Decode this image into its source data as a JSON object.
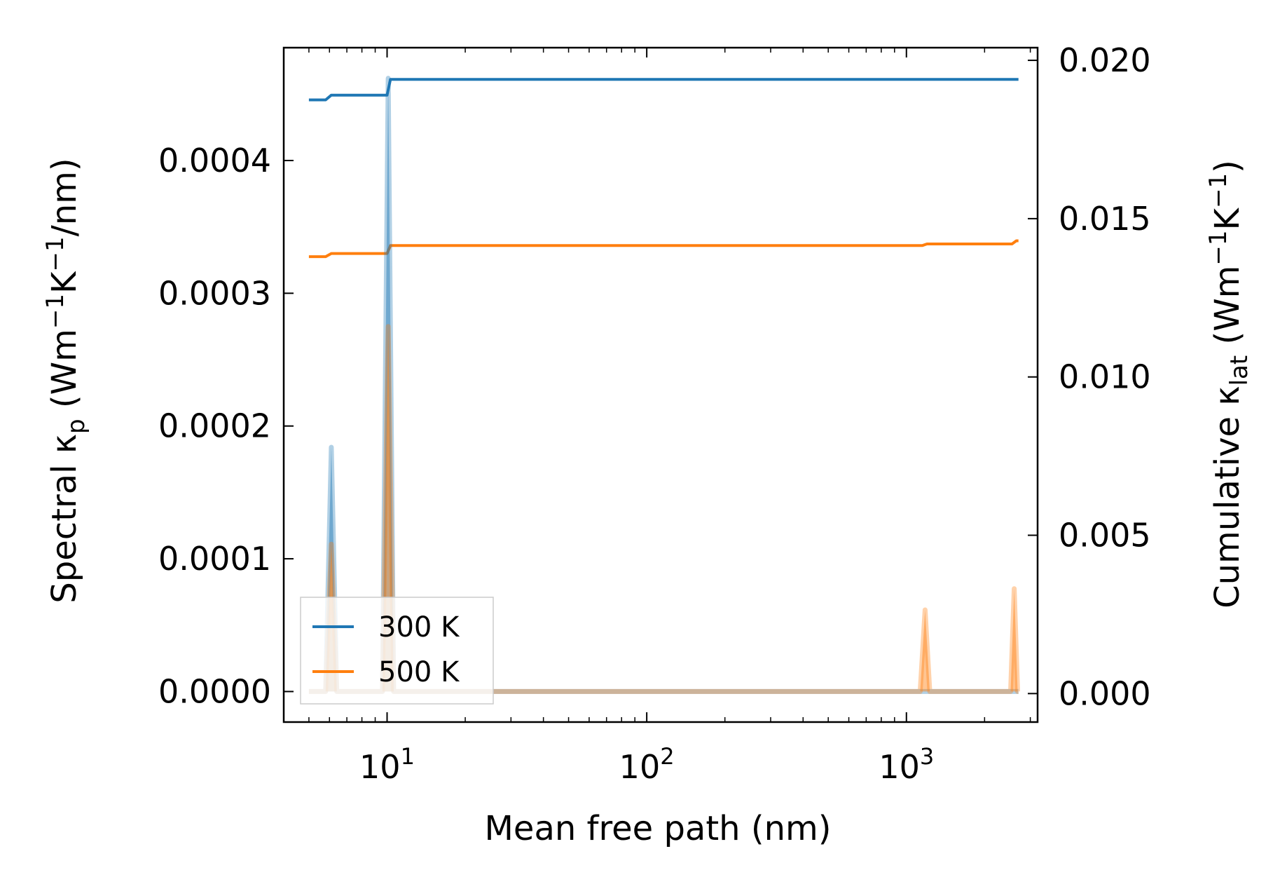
{
  "chart_data": {
    "type": "line",
    "title": "",
    "xlabel": "Mean free path (nm)",
    "x_scale": "log",
    "xlim": [
      4.0,
      3200
    ],
    "x_ticks": [
      {
        "value": 10,
        "base": "10",
        "exp": "1"
      },
      {
        "value": 100,
        "base": "10",
        "exp": "2"
      },
      {
        "value": 1000,
        "base": "10",
        "exp": "3"
      }
    ],
    "ylabel_left": {
      "pre": "Spectral κ",
      "sub": "p",
      "mid": " (Wm",
      "sup1": "−1",
      "mid2": "K",
      "sup2": "−1",
      "post": "/nm)"
    },
    "ylim_left": [
      -2.3e-05,
      0.000485
    ],
    "y_ticks_left": [
      "0.0000",
      "0.0001",
      "0.0002",
      "0.0003",
      "0.0004"
    ],
    "ylabel_right": {
      "pre": "Cumulative κ",
      "sub": "lat",
      "mid": " (Wm",
      "sup1": "−1",
      "mid2": "K",
      "sup2": "−1",
      "post": ")"
    },
    "ylim_right": [
      -0.0009,
      0.0204
    ],
    "y_ticks_right": [
      "0.000",
      "0.005",
      "0.010",
      "0.015",
      "0.020"
    ],
    "legend": {
      "position": "lower-left",
      "entries": [
        "300 K",
        "500 K"
      ]
    },
    "series": [
      {
        "name": "300 K",
        "color": "#1f77b4",
        "axis": "right",
        "kind": "cumulative",
        "x": [
          5.0,
          5.8,
          6.1,
          6.3,
          10.0,
          10.3,
          10.5,
          2700
        ],
        "values": [
          0.01875,
          0.01875,
          0.0189,
          0.0189,
          0.0189,
          0.0194,
          0.0194,
          0.0194
        ]
      },
      {
        "name": "500 K",
        "color": "#ff7f0e",
        "axis": "right",
        "kind": "cumulative",
        "x": [
          5.0,
          5.8,
          6.1,
          6.3,
          10.0,
          10.3,
          10.5,
          1150,
          1200,
          1250,
          2550,
          2650,
          2700
        ],
        "values": [
          0.0138,
          0.0138,
          0.0139,
          0.0139,
          0.0139,
          0.01415,
          0.01415,
          0.01415,
          0.0142,
          0.0142,
          0.0142,
          0.0143,
          0.0143
        ]
      },
      {
        "name": "300 K spectral",
        "color": "#1f77b4",
        "axis": "left",
        "kind": "spectral",
        "x": [
          5.0,
          5.8,
          6.1,
          6.4,
          9.6,
          10.1,
          10.6,
          2700
        ],
        "values": [
          0,
          0,
          0.000184,
          0,
          0,
          0.000462,
          0,
          0
        ]
      },
      {
        "name": "500 K spectral",
        "color": "#ff7f0e",
        "axis": "left",
        "kind": "spectral",
        "x": [
          5.0,
          5.8,
          6.1,
          6.4,
          9.6,
          10.1,
          10.6,
          1130,
          1180,
          1230,
          2520,
          2600,
          2680,
          2700
        ],
        "values": [
          0,
          0,
          0.000111,
          0,
          0,
          0.000275,
          0,
          0,
          6.15e-05,
          0,
          0,
          7.75e-05,
          0,
          0
        ]
      }
    ]
  }
}
